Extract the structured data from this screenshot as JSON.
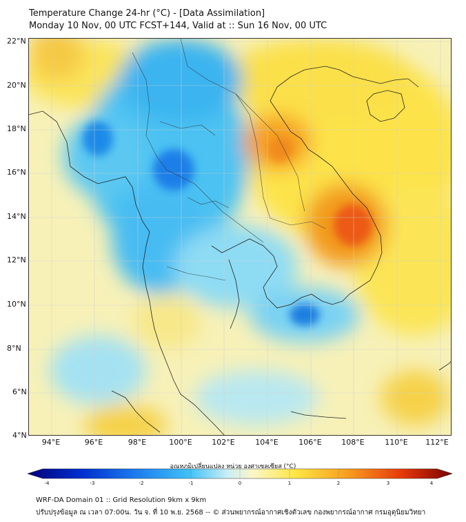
{
  "header": {
    "line1": "Temperature Change 24-hr (°C) - [Data Assimilation]",
    "line2": "Monday 10 Nov, 00 UTC FCST+144, Valid at :: Sun 16 Nov, 00 UTC"
  },
  "axes": {
    "lat_labels": [
      "22°N",
      "20°N",
      "18°N",
      "16°N",
      "14°N",
      "12°N",
      "10°N",
      "8°N",
      "6°N",
      "4°N"
    ],
    "lon_labels": [
      "94°E",
      "96°E",
      "98°E",
      "100°E",
      "102°E",
      "104°E",
      "106°E",
      "108°E",
      "110°E",
      "112°E"
    ]
  },
  "colorbar": {
    "label": "อุณหภูมิเปลี่ยนแปลง หน่วย องศาเซลเซียส (°C)",
    "ticks": [
      "-4",
      "-3",
      "-2",
      "-1",
      "0",
      "1",
      "2",
      "3",
      "4"
    ],
    "range": [
      -4,
      4
    ]
  },
  "footer": {
    "line1": "WRF-DA Domain 01 :: Grid Resolution 9km x 9km",
    "line2": "ปรับปรุงข้อมูล ณ เวลา 07:00น. วัน จ. ที่ 10 พ.ย. 2568 -- © ส่วนพยากรณ์อากาศเชิงตัวเลข กองพยากรณ์อากาศ กรมอุตุนิยมวิทยา"
  },
  "colors": {
    "cold_max": "#000080",
    "cold": "#1e90ff",
    "cyan": "#7fdcf5",
    "neutral": "#f8f8e8",
    "warm": "#ffd700",
    "hot": "#ff6a00",
    "hot_max": "#800000",
    "coast": "#222222"
  }
}
